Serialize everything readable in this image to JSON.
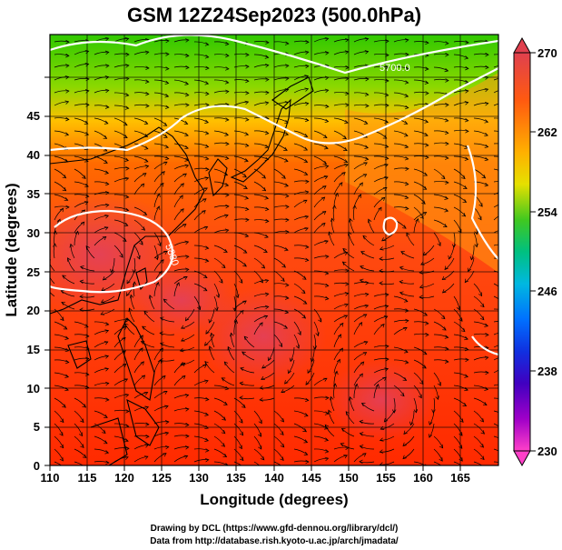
{
  "title": "GSM 12Z24Sep2023 (500.0hPa)",
  "xlabel": "Longitude (degrees)",
  "ylabel": "Latitude (degrees)",
  "credits": [
    "Drawing by DCL (https://www.gfd-dennou.org/library/dcl/)",
    "Data from http://database.rish.kyoto-u.ac.jp/arch/jmadata/"
  ],
  "colorbar": {
    "labels": [
      "270",
      "262",
      "254",
      "246",
      "238",
      "230"
    ],
    "colors": [
      "#d9304a",
      "#ff5e00",
      "#ffb300",
      "#e5e000",
      "#55d000",
      "#00c060",
      "#00c0d0",
      "#0080ff",
      "#2030e0",
      "#5000c0",
      "#a000c0",
      "#ff30c0"
    ]
  },
  "map": {
    "xticks": [
      "110",
      "115",
      "120",
      "125",
      "130",
      "135",
      "140",
      "145",
      "150",
      "155",
      "160",
      "165"
    ],
    "yticks": [
      "0",
      "5",
      "10",
      "15",
      "20",
      "25",
      "30",
      "35",
      "40",
      "45"
    ],
    "contour_labels": [
      "5700.0",
      "5880"
    ]
  }
}
